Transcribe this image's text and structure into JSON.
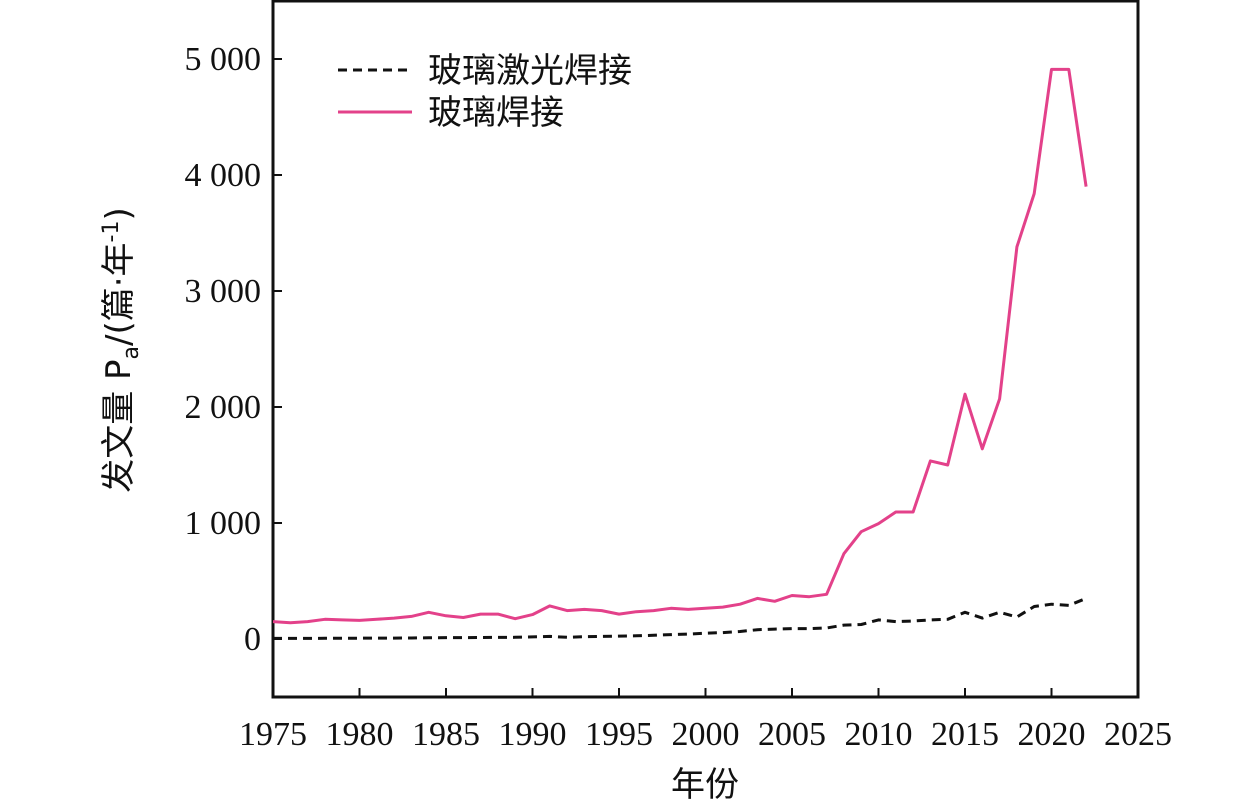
{
  "chart_data": {
    "type": "line",
    "title": "",
    "xlabel": "年份",
    "ylabel": "发文量 P",
    "ylabel_sub": "a",
    "ylabel_unit": "/(篇·年",
    "ylabel_sup": "-1",
    "ylabel_close": ")",
    "xlim": [
      1975,
      2025
    ],
    "ylim": [
      -500,
      5500
    ],
    "xticks": [
      1975,
      1980,
      1985,
      1990,
      1995,
      2000,
      2005,
      2010,
      2015,
      2020,
      2025
    ],
    "yticks": [
      0,
      1000,
      2000,
      3000,
      4000,
      5000
    ],
    "ytick_labels": [
      "0",
      "1 000",
      "2 000",
      "3 000",
      "4 000",
      "5 000"
    ],
    "grid": false,
    "legend_position": "top-left",
    "x": [
      1975,
      1976,
      1977,
      1978,
      1979,
      1980,
      1981,
      1982,
      1983,
      1984,
      1985,
      1986,
      1987,
      1988,
      1989,
      1990,
      1991,
      1992,
      1993,
      1994,
      1995,
      1996,
      1997,
      1998,
      1999,
      2000,
      2001,
      2002,
      2003,
      2004,
      2005,
      2006,
      2007,
      2008,
      2009,
      2010,
      2011,
      2012,
      2013,
      2014,
      2015,
      2016,
      2017,
      2018,
      2019,
      2020,
      2021,
      2022
    ],
    "series": [
      {
        "name": "玻璃激光焊接",
        "color": "#111111",
        "style": "dashed",
        "values": [
          5,
          5,
          5,
          6,
          6,
          7,
          8,
          8,
          9,
          10,
          12,
          12,
          13,
          14,
          15,
          18,
          22,
          15,
          20,
          22,
          25,
          28,
          32,
          38,
          42,
          50,
          55,
          65,
          80,
          85,
          90,
          90,
          95,
          120,
          125,
          165,
          150,
          155,
          165,
          170,
          230,
          180,
          230,
          190,
          280,
          300,
          290,
          350
        ]
      },
      {
        "name": "玻璃焊接",
        "color": "#e3418a",
        "style": "solid",
        "values": [
          150,
          140,
          150,
          170,
          165,
          160,
          170,
          180,
          195,
          230,
          200,
          185,
          215,
          215,
          175,
          210,
          285,
          245,
          255,
          245,
          215,
          235,
          245,
          265,
          255,
          265,
          275,
          300,
          350,
          325,
          375,
          365,
          385,
          735,
          925,
          995,
          1095,
          1095,
          1535,
          1500,
          2110,
          1640,
          2070,
          3380,
          3840,
          4910,
          4910,
          3900
        ]
      }
    ]
  }
}
